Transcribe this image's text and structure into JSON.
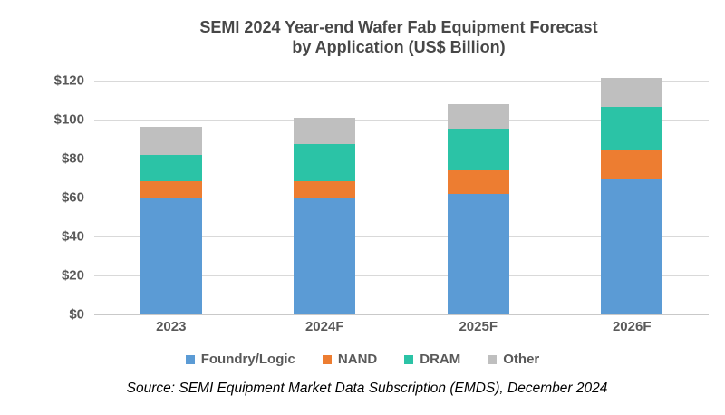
{
  "title": {
    "line1": "SEMI 2024 Year-end Wafer Fab Equipment Forecast",
    "line2": "by Application (US$ Billion)"
  },
  "source": "Source: SEMI Equipment Market Data Subscription (EMDS), December 2024",
  "chart_data": {
    "type": "bar",
    "stacked": true,
    "title": "SEMI 2024 Year-end Wafer Fab Equipment Forecast by Application (US$ Billion)",
    "categories": [
      "2023",
      "2024F",
      "2025F",
      "2026F"
    ],
    "series": [
      {
        "name": "Foundry/Logic",
        "color": "#5b9bd5",
        "values": [
          59,
          59,
          61.5,
          69
        ]
      },
      {
        "name": "NAND",
        "color": "#ed7d31",
        "values": [
          9,
          9,
          12,
          15
        ]
      },
      {
        "name": "DRAM",
        "color": "#2bc3a6",
        "values": [
          13.5,
          19,
          21.5,
          22
        ]
      },
      {
        "name": "Other",
        "color": "#bfbfbf",
        "values": [
          14.5,
          13.5,
          12.5,
          15
        ]
      }
    ],
    "totals": [
      96,
      100.5,
      107.5,
      121
    ],
    "ylabel": "",
    "xlabel": "",
    "ylim": [
      0,
      120
    ],
    "y_tick_step": 20,
    "y_ticks": [
      "$0",
      "$20",
      "$40",
      "$60",
      "$80",
      "$100",
      "$120"
    ],
    "currency_prefix": "$",
    "grid": true,
    "legend_position": "bottom",
    "gridline_color": "#d9d9d9",
    "text_color": "#595959"
  }
}
